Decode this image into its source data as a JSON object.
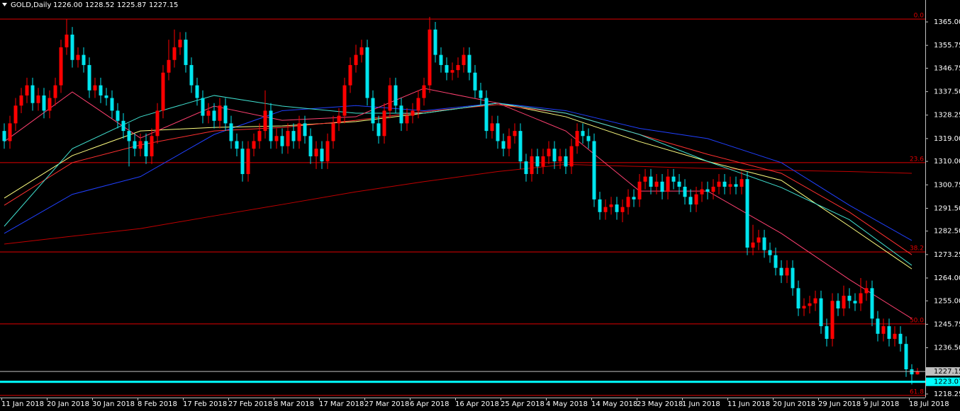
{
  "chart_data": {
    "type": "candlestick",
    "header": {
      "title": "GOLD,Daily",
      "values": [
        {
          "value": 1226,
          "label": "1226.00"
        },
        {
          "value": 1228.52,
          "label": "1228.52"
        },
        {
          "value": 1225.87,
          "label": "1225.87"
        },
        {
          "value": 1227.15,
          "label": "1227.15"
        }
      ]
    },
    "categories": [
      "11 Jan 2018",
      null,
      null,
      null,
      null,
      null,
      null,
      null,
      "20 Jan 2018",
      null,
      null,
      null,
      null,
      null,
      null,
      null,
      "30 Jan 2018",
      null,
      null,
      null,
      null,
      null,
      null,
      null,
      "8 Feb 2018",
      null,
      null,
      null,
      null,
      null,
      null,
      null,
      "17 Feb 2018",
      null,
      null,
      null,
      null,
      null,
      null,
      null,
      "27 Feb 2018",
      null,
      null,
      null,
      null,
      null,
      null,
      null,
      "8 Mar 2018",
      null,
      null,
      null,
      null,
      null,
      null,
      null,
      "17 Mar 2018",
      null,
      null,
      null,
      null,
      null,
      null,
      null,
      "27 Mar 2018",
      null,
      null,
      null,
      null,
      null,
      null,
      null,
      "6 Apr 2018",
      null,
      null,
      null,
      null,
      null,
      null,
      null,
      "16 Apr 2018",
      null,
      null,
      null,
      null,
      null,
      null,
      null,
      "25 Apr 2018",
      null,
      null,
      null,
      null,
      null,
      null,
      null,
      "4 May 2018",
      null,
      null,
      null,
      null,
      null,
      null,
      null,
      "14 May 2018",
      null,
      null,
      null,
      null,
      null,
      null,
      null,
      "23 May 2018",
      null,
      null,
      null,
      null,
      null,
      null,
      null,
      "1 Jun 2018",
      null,
      null,
      null,
      null,
      null,
      null,
      null,
      "11 Jun 2018",
      null,
      null,
      null,
      null,
      null,
      null,
      null,
      "20 Jun 2018",
      null,
      null,
      null,
      null,
      null,
      null,
      null,
      "29 Jun 2018",
      null,
      null,
      null,
      null,
      null,
      null,
      null,
      "9 Jul 2018",
      null,
      null,
      null,
      null,
      null,
      null,
      null,
      "18 Jul 2018",
      null
    ],
    "open": [
      1322,
      1318,
      1325,
      1332,
      1336,
      1340,
      1333,
      1336,
      1330,
      1335,
      1340,
      1355,
      1360,
      1350,
      1352,
      1348,
      1338,
      1340,
      1336,
      1335,
      1330,
      1326,
      1322,
      1318,
      1315,
      1318,
      1312,
      1320,
      1330,
      1345,
      1350,
      1355,
      1358,
      1348,
      1340,
      1335,
      1328,
      1330,
      1326,
      1332,
      1325,
      1318,
      1315,
      1305,
      1315,
      1318,
      1322,
      1330,
      1318,
      1320,
      1316,
      1322,
      1318,
      1325,
      1320,
      1312,
      1315,
      1310,
      1318,
      1325,
      1328,
      1340,
      1348,
      1352,
      1355,
      1335,
      1325,
      1320,
      1330,
      1340,
      1332,
      1325,
      1328,
      1330,
      1335,
      1340,
      1362,
      1352,
      1348,
      1345,
      1346,
      1348,
      1352,
      1345,
      1338,
      1335,
      1322,
      1325,
      1318,
      1315,
      1320,
      1322,
      1310,
      1305,
      1312,
      1308,
      1312,
      1315,
      1310,
      1312,
      1308,
      1316,
      1322,
      1320,
      1318,
      1295,
      1290,
      1292,
      1293,
      1290,
      1292,
      1296,
      1295,
      1302,
      1304,
      1300,
      1302,
      1298,
      1304,
      1302,
      1300,
      1296,
      1293,
      1297,
      1299,
      1298,
      1300,
      1302,
      1300,
      1301,
      1300,
      1303,
      1276,
      1278,
      1280,
      1275,
      1273,
      1268,
      1265,
      1268,
      1260,
      1252,
      1253,
      1254,
      1256,
      1245,
      1240,
      1255,
      1252,
      1257,
      1255,
      1254,
      1258,
      1260,
      1248,
      1242,
      1245,
      1240,
      1242,
      1238,
      1228,
      1226
    ],
    "high": [
      1325,
      1328,
      1335,
      1339,
      1343,
      1343,
      1339,
      1339,
      1338,
      1343,
      1358,
      1366,
      1363,
      1355,
      1355,
      1351,
      1343,
      1343,
      1339,
      1338,
      1333,
      1329,
      1325,
      1321,
      1321,
      1321,
      1323,
      1333,
      1348,
      1358,
      1362,
      1361,
      1361,
      1351,
      1343,
      1338,
      1333,
      1333,
      1335,
      1335,
      1328,
      1321,
      1318,
      1318,
      1321,
      1325,
      1338,
      1333,
      1323,
      1323,
      1325,
      1325,
      1328,
      1328,
      1323,
      1318,
      1318,
      1321,
      1328,
      1331,
      1343,
      1351,
      1356,
      1358,
      1358,
      1338,
      1328,
      1333,
      1343,
      1343,
      1335,
      1331,
      1333,
      1338,
      1343,
      1367,
      1365,
      1355,
      1351,
      1349,
      1351,
      1355,
      1355,
      1348,
      1341,
      1338,
      1328,
      1328,
      1321,
      1323,
      1325,
      1325,
      1313,
      1315,
      1315,
      1315,
      1318,
      1318,
      1315,
      1315,
      1319,
      1325,
      1325,
      1323,
      1321,
      1298,
      1295,
      1296,
      1296,
      1295,
      1299,
      1299,
      1305,
      1307,
      1307,
      1305,
      1305,
      1307,
      1307,
      1305,
      1303,
      1299,
      1300,
      1302,
      1302,
      1303,
      1305,
      1305,
      1304,
      1304,
      1306,
      1306,
      1285,
      1283,
      1283,
      1278,
      1276,
      1271,
      1271,
      1271,
      1263,
      1256,
      1257,
      1259,
      1259,
      1248,
      1258,
      1258,
      1261,
      1260,
      1258,
      1264,
      1263,
      1263,
      1251,
      1248,
      1248,
      1245,
      1245,
      1241,
      1230,
      1228.52
    ],
    "low": [
      1315,
      1315,
      1322,
      1329,
      1333,
      1330,
      1330,
      1327,
      1327,
      1332,
      1337,
      1352,
      1347,
      1347,
      1345,
      1335,
      1335,
      1333,
      1332,
      1327,
      1323,
      1319,
      1308,
      1312,
      1312,
      1309,
      1309,
      1317,
      1327,
      1342,
      1347,
      1352,
      1345,
      1337,
      1332,
      1325,
      1325,
      1323,
      1323,
      1322,
      1315,
      1312,
      1302,
      1302,
      1312,
      1315,
      1319,
      1315,
      1315,
      1313,
      1313,
      1315,
      1315,
      1317,
      1309,
      1307,
      1307,
      1307,
      1315,
      1322,
      1325,
      1337,
      1345,
      1349,
      1332,
      1322,
      1317,
      1317,
      1327,
      1329,
      1322,
      1322,
      1325,
      1327,
      1332,
      1337,
      1349,
      1345,
      1342,
      1342,
      1343,
      1345,
      1342,
      1335,
      1332,
      1319,
      1319,
      1315,
      1312,
      1312,
      1317,
      1307,
      1302,
      1302,
      1305,
      1305,
      1309,
      1307,
      1307,
      1305,
      1305,
      1313,
      1317,
      1315,
      1292,
      1287,
      1287,
      1289,
      1287,
      1286,
      1289,
      1292,
      1292,
      1299,
      1297,
      1297,
      1295,
      1295,
      1299,
      1297,
      1293,
      1290,
      1290,
      1294,
      1295,
      1295,
      1297,
      1297,
      1297,
      1297,
      1297,
      1273,
      1273,
      1275,
      1272,
      1270,
      1265,
      1262,
      1262,
      1257,
      1249,
      1249,
      1250,
      1251,
      1242,
      1237,
      1237,
      1249,
      1249,
      1252,
      1251,
      1251,
      1255,
      1245,
      1239,
      1239,
      1237,
      1237,
      1235,
      1225,
      1222,
      1225.87
    ],
    "close": [
      1318,
      1325,
      1332,
      1336,
      1340,
      1333,
      1336,
      1330,
      1335,
      1340,
      1355,
      1360,
      1350,
      1352,
      1348,
      1338,
      1340,
      1336,
      1335,
      1330,
      1326,
      1322,
      1318,
      1315,
      1318,
      1312,
      1320,
      1330,
      1345,
      1350,
      1355,
      1358,
      1348,
      1340,
      1335,
      1328,
      1330,
      1326,
      1332,
      1325,
      1318,
      1315,
      1305,
      1315,
      1318,
      1322,
      1330,
      1318,
      1320,
      1316,
      1322,
      1318,
      1325,
      1320,
      1312,
      1315,
      1310,
      1318,
      1325,
      1328,
      1340,
      1348,
      1352,
      1355,
      1335,
      1325,
      1320,
      1330,
      1340,
      1332,
      1325,
      1328,
      1330,
      1335,
      1340,
      1362,
      1352,
      1348,
      1345,
      1346,
      1348,
      1352,
      1345,
      1338,
      1335,
      1322,
      1325,
      1318,
      1315,
      1320,
      1322,
      1310,
      1305,
      1312,
      1308,
      1312,
      1315,
      1310,
      1312,
      1308,
      1316,
      1322,
      1320,
      1318,
      1295,
      1290,
      1292,
      1293,
      1290,
      1292,
      1296,
      1295,
      1302,
      1304,
      1300,
      1302,
      1298,
      1304,
      1302,
      1300,
      1296,
      1293,
      1297,
      1299,
      1298,
      1300,
      1302,
      1300,
      1301,
      1300,
      1303,
      1276,
      1278,
      1280,
      1275,
      1273,
      1268,
      1265,
      1268,
      1260,
      1252,
      1253,
      1254,
      1256,
      1245,
      1240,
      1255,
      1252,
      1257,
      1255,
      1254,
      1258,
      1260,
      1248,
      1242,
      1245,
      1240,
      1242,
      1238,
      1228,
      1226,
      1227.15
    ],
    "bull_color": "#ff0000",
    "bear_color": "#00e5ee",
    "overlays": [
      {
        "color": "#c00000",
        "x": [
          0,
          12,
          24,
          37,
          49,
          62,
          74,
          87,
          99,
          112,
          124,
          137,
          149,
          160
        ],
        "values": [
          1277.4,
          1280.5,
          1283.5,
          1288.5,
          1293,
          1298,
          1302,
          1306,
          1308.8,
          1308,
          1307.2,
          1306.5,
          1306,
          1305.3
        ]
      },
      {
        "color": "#2040ff",
        "x": [
          0,
          12,
          24,
          37,
          49,
          62,
          74,
          87,
          99,
          112,
          124,
          137,
          149,
          160
        ],
        "values": [
          1281.6,
          1297,
          1304,
          1320.6,
          1330,
          1332,
          1330,
          1333,
          1330,
          1323,
          1319,
          1309.5,
          1292.7,
          1278.8
        ]
      },
      {
        "color": "#ffff80",
        "x": [
          0,
          12,
          24,
          37,
          49,
          62,
          74,
          87,
          99,
          112,
          124,
          137,
          149,
          160
        ],
        "values": [
          1295.5,
          1312.3,
          1322,
          1323.4,
          1324,
          1325.7,
          1329,
          1333,
          1327.6,
          1317.8,
          1310,
          1302.5,
          1284.4,
          1267.6
        ]
      },
      {
        "color": "#ff3030",
        "x": [
          0,
          12,
          24,
          37,
          49,
          62,
          74,
          87,
          99,
          112,
          124,
          137,
          149,
          160
        ],
        "values": [
          1292.7,
          1309.5,
          1316.5,
          1322,
          1323.4,
          1326.2,
          1329.6,
          1332.4,
          1329,
          1320.6,
          1312.8,
          1305.3,
          1290,
          1273.2
        ]
      },
      {
        "color": "#40e0d0",
        "x": [
          0,
          12,
          24,
          37,
          49,
          62,
          74,
          87,
          99,
          112,
          124,
          137,
          149,
          160
        ],
        "values": [
          1284.4,
          1315,
          1327.6,
          1336,
          1331.8,
          1329,
          1329,
          1333,
          1329,
          1320.6,
          1310,
          1299.7,
          1287,
          1269
        ]
      },
      {
        "color": "#ff4070",
        "x": [
          0,
          12,
          24,
          37,
          49,
          62,
          74,
          87,
          99,
          112,
          124,
          137,
          149,
          160
        ],
        "values": [
          1317.8,
          1337.4,
          1319.2,
          1331.8,
          1326.2,
          1327.6,
          1338.8,
          1333,
          1322,
          1298.3,
          1298.3,
          1281.6,
          1263.4,
          1248
        ]
      }
    ],
    "levels": [
      {
        "value": 1366.1,
        "label": "0.0"
      },
      {
        "value": 1309.5,
        "label": "23.6"
      },
      {
        "value": 1274.3,
        "label": "38.2"
      },
      {
        "value": 1245.9,
        "label": "50.0"
      },
      {
        "value": 1217.7,
        "label": "61.8"
      }
    ],
    "level_color": "#e00000",
    "price_lines": [
      {
        "value": 1227.15,
        "color": "#c0c0c0"
      },
      {
        "value": 1223.07,
        "color": "#00ffff"
      }
    ],
    "ylim": [
      1216.85,
      1373.65
    ],
    "yticks": [
      {
        "value": 1365,
        "label": "1365.00"
      },
      1355.75,
      1346.75,
      {
        "value": 1337.5,
        "label": "1337.50"
      },
      1328.25,
      {
        "value": 1319,
        "label": "1319.00"
      },
      {
        "value": 1310,
        "label": "1310.00"
      },
      1300.75,
      {
        "value": 1291.5,
        "label": "1291.50"
      },
      {
        "value": 1282.5,
        "label": "1282.50"
      },
      1273.25,
      {
        "value": 1264,
        "label": "1264.00"
      },
      {
        "value": 1255,
        "label": "1255.00"
      },
      1245.75,
      {
        "value": 1236.5,
        "label": "1236.50"
      },
      1218.25
    ]
  }
}
